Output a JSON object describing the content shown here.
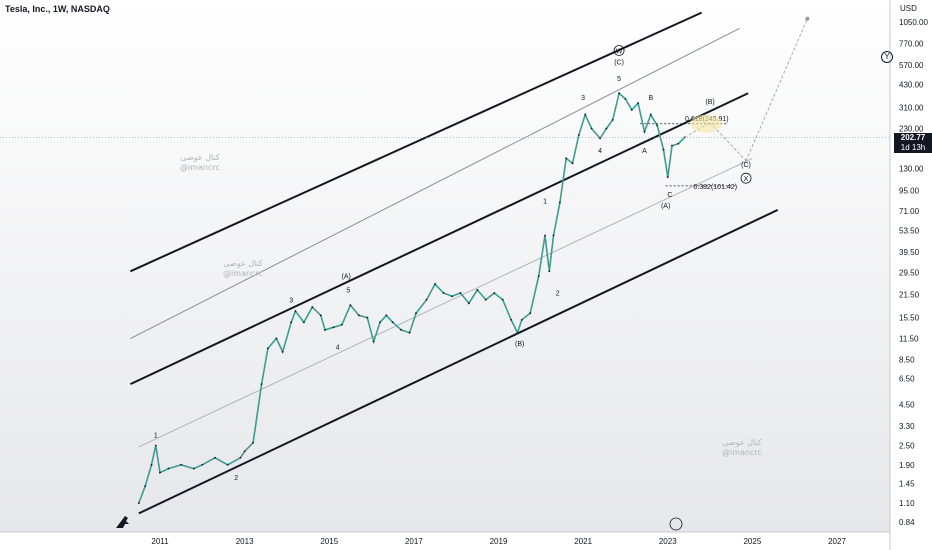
{
  "header": {
    "symbol": "Tesla, Inc., 1W, NASDAQ",
    "currency": "USD"
  },
  "price_badge": {
    "price": "202.77",
    "countdown": "1d 13h"
  },
  "axis_icon": "Y",
  "watermarks": [
    {
      "ar": "كنال عوصى",
      "handle": "@imancrc"
    },
    {
      "ar": "كنال عوصى",
      "handle": "@imancrc"
    },
    {
      "ar": "كنال عوصى",
      "handle": "@imancrc"
    }
  ],
  "fib_labels": [
    {
      "text": "0.618(245.91)"
    },
    {
      "text": "0.382(101.42)"
    }
  ],
  "chart_data": {
    "type": "line",
    "yscale": "log",
    "ylim": [
      0.84,
      1050
    ],
    "xlim": [
      2010.3,
      2028.2
    ],
    "x_ticks": [
      "2011",
      "2013",
      "2015",
      "2017",
      "2019",
      "2021",
      "2023",
      "2025",
      "2027"
    ],
    "y_ticks": [
      "1050.00",
      "770.00",
      "570.00",
      "430.00",
      "310.00",
      "230.00",
      "130.00",
      "95.00",
      "71.00",
      "53.50",
      "39.50",
      "29.50",
      "21.50",
      "15.50",
      "11.50",
      "8.50",
      "6.50",
      "4.50",
      "3.30",
      "2.50",
      "1.90",
      "1.45",
      "1.10",
      "0.84"
    ],
    "last_price": 202.77,
    "series": [
      {
        "values": [
          [
            2010.5,
            1.1
          ],
          [
            2010.65,
            1.4
          ],
          [
            2010.8,
            1.9
          ],
          [
            2010.9,
            2.5
          ],
          [
            2011.0,
            1.7
          ],
          [
            2011.2,
            1.8
          ],
          [
            2011.5,
            1.9
          ],
          [
            2011.8,
            1.8
          ],
          [
            2012.0,
            1.9
          ],
          [
            2012.3,
            2.1
          ],
          [
            2012.6,
            1.9
          ],
          [
            2012.9,
            2.1
          ],
          [
            2013.0,
            2.3
          ],
          [
            2013.2,
            2.6
          ],
          [
            2013.4,
            6.0
          ],
          [
            2013.55,
            10.0
          ],
          [
            2013.75,
            11.5
          ],
          [
            2013.9,
            9.5
          ],
          [
            2014.1,
            14.5
          ],
          [
            2014.2,
            17.0
          ],
          [
            2014.4,
            14.5
          ],
          [
            2014.6,
            18.0
          ],
          [
            2014.8,
            16.0
          ],
          [
            2014.9,
            13.0
          ],
          [
            2015.1,
            13.5
          ],
          [
            2015.3,
            14.0
          ],
          [
            2015.5,
            18.5
          ],
          [
            2015.7,
            16.0
          ],
          [
            2015.9,
            15.5
          ],
          [
            2016.05,
            11.0
          ],
          [
            2016.2,
            14.5
          ],
          [
            2016.35,
            16.0
          ],
          [
            2016.5,
            14.5
          ],
          [
            2016.7,
            13.0
          ],
          [
            2016.9,
            12.5
          ],
          [
            2017.05,
            16.5
          ],
          [
            2017.3,
            20.0
          ],
          [
            2017.5,
            25.0
          ],
          [
            2017.7,
            22.0
          ],
          [
            2017.9,
            21.0
          ],
          [
            2018.1,
            22.0
          ],
          [
            2018.3,
            19.0
          ],
          [
            2018.5,
            23.0
          ],
          [
            2018.7,
            20.0
          ],
          [
            2018.9,
            22.0
          ],
          [
            2019.1,
            20.0
          ],
          [
            2019.3,
            15.0
          ],
          [
            2019.45,
            12.5
          ],
          [
            2019.55,
            15.0
          ],
          [
            2019.75,
            16.5
          ],
          [
            2019.95,
            28.0
          ],
          [
            2020.1,
            50.0
          ],
          [
            2020.2,
            30.0
          ],
          [
            2020.3,
            50.0
          ],
          [
            2020.45,
            80.0
          ],
          [
            2020.6,
            150.0
          ],
          [
            2020.75,
            140.0
          ],
          [
            2020.9,
            210.0
          ],
          [
            2021.05,
            280.0
          ],
          [
            2021.2,
            230.0
          ],
          [
            2021.4,
            200.0
          ],
          [
            2021.55,
            230.0
          ],
          [
            2021.7,
            260.0
          ],
          [
            2021.85,
            380.0
          ],
          [
            2022.0,
            350.0
          ],
          [
            2022.15,
            300.0
          ],
          [
            2022.3,
            330.0
          ],
          [
            2022.45,
            220.0
          ],
          [
            2022.6,
            280.0
          ],
          [
            2022.75,
            240.0
          ],
          [
            2022.9,
            170.0
          ],
          [
            2023.0,
            115.0
          ],
          [
            2023.1,
            180.0
          ],
          [
            2023.25,
            185.0
          ],
          [
            2023.4,
            202.77
          ]
        ]
      }
    ],
    "wave_labels": [
      {
        "text": "1",
        "x": 2010.9,
        "y": 2.85
      },
      {
        "text": "2",
        "x": 2012.8,
        "y": 1.55
      },
      {
        "text": "3",
        "x": 2014.1,
        "y": 19.5
      },
      {
        "text": "4",
        "x": 2015.2,
        "y": 10.0
      },
      {
        "text": "5",
        "x": 2015.45,
        "y": 22.5
      },
      {
        "text": "(A)",
        "x": 2015.4,
        "y": 27.5
      },
      {
        "text": "(B)",
        "x": 2019.5,
        "y": 10.5
      },
      {
        "text": "1",
        "x": 2020.1,
        "y": 80.0
      },
      {
        "text": "2",
        "x": 2020.4,
        "y": 21.5
      },
      {
        "text": "3",
        "x": 2021.0,
        "y": 350.0
      },
      {
        "text": "4",
        "x": 2021.4,
        "y": 165.0
      },
      {
        "text": "5",
        "x": 2021.85,
        "y": 460.0
      },
      {
        "text": "(C)",
        "x": 2021.85,
        "y": 580.0
      },
      {
        "text": "W",
        "x": 2021.85,
        "y": 680.0
      },
      {
        "text": "B",
        "x": 2022.6,
        "y": 350.0
      },
      {
        "text": "A",
        "x": 2022.45,
        "y": 165.0
      },
      {
        "text": "C",
        "x": 2023.05,
        "y": 88.0
      },
      {
        "text": "(A)",
        "x": 2022.95,
        "y": 75.0
      },
      {
        "text": "(B)",
        "x": 2024.0,
        "y": 330.0
      },
      {
        "text": "(C)",
        "x": 2024.85,
        "y": 135.0
      },
      {
        "text": "X",
        "x": 2024.85,
        "y": 110.0
      }
    ],
    "channels": [
      {
        "name": "upper-outer",
        "from": [
          2010.3,
          30.0
        ],
        "to": [
          2023.8,
          1200.0
        ],
        "color": "#131722",
        "width": 2
      },
      {
        "name": "upper-mid",
        "from": [
          2010.3,
          11.5
        ],
        "to": [
          2024.7,
          960.0
        ],
        "color": "#8a8d94",
        "width": 1
      },
      {
        "name": "middle",
        "from": [
          2010.3,
          6.0
        ],
        "to": [
          2024.9,
          380.0
        ],
        "color": "#131722",
        "width": 2
      },
      {
        "name": "lower-mid",
        "from": [
          2010.5,
          2.45
        ],
        "to": [
          2025.0,
          150.0
        ],
        "color": "#b0b3bb",
        "width": 1
      },
      {
        "name": "lower-outer",
        "from": [
          2010.5,
          0.95
        ],
        "to": [
          2025.6,
          72.0
        ],
        "color": "#131722",
        "width": 2
      }
    ],
    "projections": [
      {
        "from": [
          2023.4,
          202.77
        ],
        "to": [
          2024.0,
          250.0
        ]
      },
      {
        "from": [
          2024.0,
          250.0
        ],
        "to": [
          2024.85,
          145.0
        ]
      },
      {
        "from": [
          2024.85,
          145.0
        ],
        "to": [
          2026.3,
          1100.0
        ]
      }
    ],
    "fib_levels": [
      {
        "value": 245.91,
        "x1": 2022.35,
        "x2": 2024.4
      },
      {
        "value": 101.42,
        "x1": 2022.95,
        "x2": 2024.6
      }
    ]
  }
}
